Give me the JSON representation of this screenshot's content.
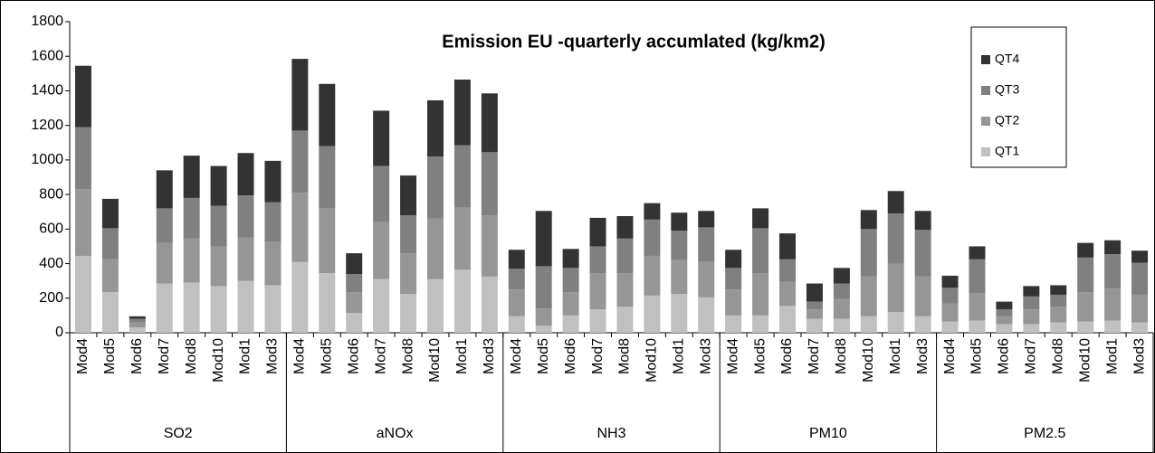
{
  "chart_data": {
    "type": "stacked-bar",
    "title": "Emission EU -quarterly accumlated (kg/km2)",
    "categories": [
      "Mod4",
      "Mod5",
      "Mod6",
      "Mod7",
      "Mod8",
      "Mod10",
      "Mod1",
      "Mod3",
      "Mod4",
      "Mod5",
      "Mod6",
      "Mod7",
      "Mod8",
      "Mod10",
      "Mod1",
      "Mod3",
      "Mod4",
      "Mod5",
      "Mod6",
      "Mod7",
      "Mod8",
      "Mod10",
      "Mod1",
      "Mod3",
      "Mod4",
      "Mod5",
      "Mod6",
      "Mod7",
      "Mod8",
      "Mod10",
      "Mod1",
      "Mod3",
      "Mod4",
      "Mod5",
      "Mod6",
      "Mod7",
      "Mod8",
      "Mod10",
      "Mod1",
      "Mod3"
    ],
    "category_groups": [
      "SO2",
      "aNOx",
      "NH3",
      "PM10",
      "PM2.5"
    ],
    "series": [
      {
        "name": "QT1",
        "color": "#c0c0c0",
        "values": [
          445,
          235,
          30,
          285,
          290,
          270,
          300,
          275,
          410,
          345,
          115,
          310,
          225,
          310,
          365,
          325,
          95,
          40,
          100,
          135,
          150,
          215,
          225,
          205,
          100,
          100,
          155,
          80,
          80,
          95,
          120,
          95,
          65,
          70,
          50,
          50,
          60,
          65,
          70,
          60
        ]
      },
      {
        "name": "QT2",
        "color": "#969696",
        "values": [
          385,
          190,
          30,
          235,
          255,
          230,
          250,
          250,
          400,
          375,
          120,
          330,
          235,
          350,
          360,
          355,
          155,
          100,
          135,
          210,
          195,
          230,
          195,
          205,
          150,
          245,
          140,
          55,
          115,
          230,
          280,
          230,
          105,
          160,
          45,
          85,
          90,
          170,
          185,
          160
        ]
      },
      {
        "name": "QT3",
        "color": "#808080",
        "values": [
          360,
          180,
          20,
          200,
          235,
          235,
          245,
          230,
          360,
          360,
          105,
          325,
          220,
          360,
          360,
          365,
          120,
          245,
          140,
          155,
          200,
          210,
          170,
          200,
          125,
          260,
          130,
          45,
          90,
          275,
          290,
          270,
          90,
          195,
          40,
          75,
          70,
          200,
          200,
          185
        ]
      },
      {
        "name": "QT4",
        "color": "#333333",
        "values": [
          355,
          170,
          15,
          220,
          245,
          230,
          245,
          240,
          415,
          360,
          120,
          320,
          230,
          325,
          380,
          340,
          110,
          320,
          110,
          165,
          130,
          95,
          105,
          95,
          105,
          115,
          150,
          105,
          90,
          110,
          130,
          110,
          70,
          75,
          45,
          60,
          55,
          85,
          80,
          70
        ]
      }
    ],
    "ylim": [
      0,
      1800
    ],
    "yticks": [
      0,
      200,
      400,
      600,
      800,
      1000,
      1200,
      1400,
      1600,
      1800
    ],
    "grid": false,
    "legend": "top-right"
  }
}
